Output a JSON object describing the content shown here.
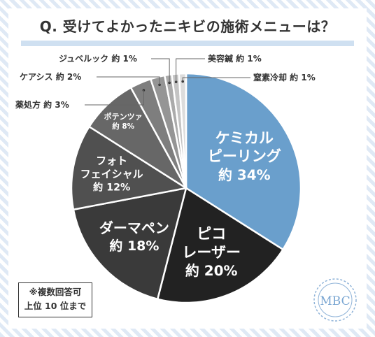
{
  "title": "Q. 受けてよかったニキビの施術メニューは？",
  "note": [
    "※複数回答可",
    "上位 10 位まで"
  ],
  "logo_text": "MBC",
  "colors": {
    "accent_blue": "#6a9fcc",
    "underline": "#cfe0f1",
    "stripe": "#dfe9f5"
  },
  "chart_data": {
    "type": "pie",
    "title": "Q. 受けてよかったニキビの施術メニューは？",
    "slices": [
      {
        "label": "ケミカルピーリング",
        "lines": [
          "ケミカル",
          "ピーリング"
        ],
        "value_label": "約 34%",
        "value": 34,
        "color": "#6a9fcc"
      },
      {
        "label": "ピコレーザー",
        "lines": [
          "ピコ",
          "レーザー"
        ],
        "value_label": "約 20%",
        "value": 20,
        "color": "#222222"
      },
      {
        "label": "ダーマペン",
        "lines": [
          "ダーマペン"
        ],
        "value_label": "約 18%",
        "value": 18,
        "color": "#3a3a3a"
      },
      {
        "label": "フォトフェイシャル",
        "lines": [
          "フォト",
          "フェイシャル"
        ],
        "value_label": "約 12%",
        "value": 12,
        "color": "#505050"
      },
      {
        "label": "ポテンツァ",
        "lines": [
          "ポテンツァ"
        ],
        "value_label": "約 8%",
        "value": 8,
        "color": "#676767"
      },
      {
        "label": "薬処方",
        "lines": [
          "薬処方"
        ],
        "value_label": "約 3%",
        "value": 3,
        "color": "#7e7e7e"
      },
      {
        "label": "ケアシス",
        "lines": [
          "ケアシス"
        ],
        "value_label": "約 2%",
        "value": 2,
        "color": "#959595"
      },
      {
        "label": "ジュベルック",
        "lines": [
          "ジュベルック"
        ],
        "value_label": "約 1%",
        "value": 1,
        "color": "#ababab"
      },
      {
        "label": "美容鍼",
        "lines": [
          "美容鍼"
        ],
        "value_label": "約 1%",
        "value": 1,
        "color": "#c4c4c4"
      },
      {
        "label": "窒素冷却",
        "lines": [
          "窒素冷却"
        ],
        "value_label": "約 1%",
        "value": 1,
        "color": "#dcdcdc"
      }
    ]
  }
}
